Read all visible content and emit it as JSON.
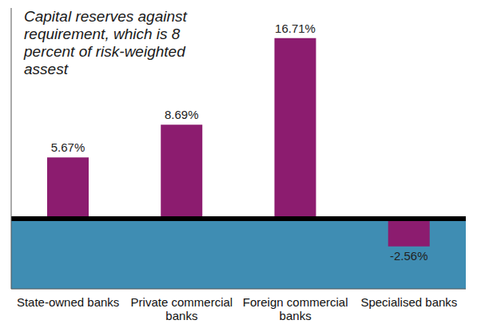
{
  "chart_data": {
    "type": "bar",
    "title": "Capital reserves against requirement, which is 8 percent of risk-weighted assest",
    "categories": [
      "State-owned banks",
      "Private commercial banks",
      "Foreign commercial banks",
      "Specialised banks"
    ],
    "values": [
      5.67,
      8.69,
      16.71,
      -2.56
    ],
    "value_labels": [
      "5.67%",
      "8.69%",
      "16.71%",
      "-2.56%"
    ],
    "color": "#8c1c6f",
    "ylim": [
      -6.5,
      19.5
    ],
    "data_labels": true,
    "tick_labels": "x",
    "grid": false
  }
}
